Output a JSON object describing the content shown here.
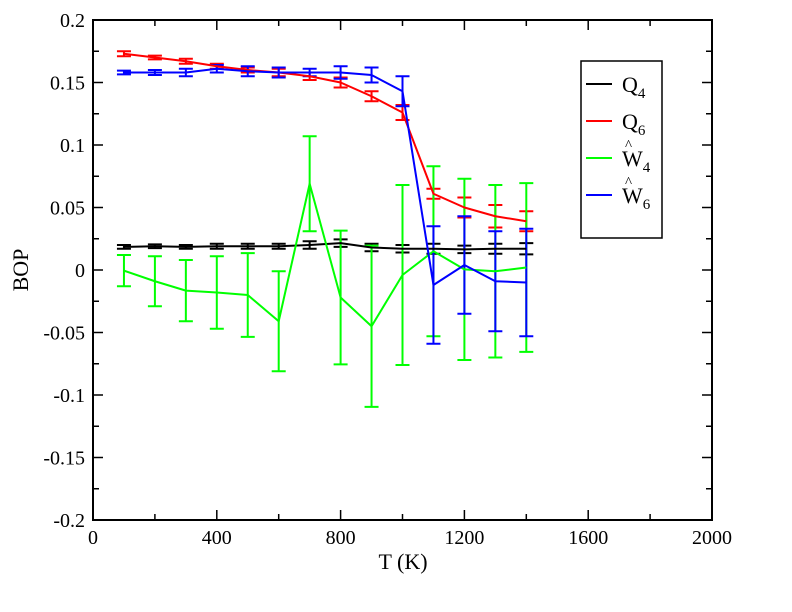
{
  "chart_data": {
    "type": "line",
    "xlabel": "T (K)",
    "ylabel": "BOP",
    "xlim": [
      0,
      2000
    ],
    "ylim": [
      -0.2,
      0.2
    ],
    "xticks": [
      "0",
      "400",
      "800",
      "1200",
      "1600",
      "2000"
    ],
    "yticks": [
      "-0.2",
      "-0.15",
      "-0.1",
      "-0.05",
      "0",
      "0.05",
      "0.1",
      "0.15",
      "0.2"
    ],
    "grid": false,
    "legend_position": "top-right",
    "x": [
      100,
      200,
      300,
      400,
      500,
      600,
      700,
      800,
      900,
      1000,
      1100,
      1200,
      1300,
      1400
    ],
    "series": [
      {
        "name": "Q4",
        "legend_main": "Q",
        "legend_sub": "4",
        "hat": false,
        "color": "#000000",
        "values": [
          0.0185,
          0.019,
          0.0185,
          0.019,
          0.019,
          0.019,
          0.02,
          0.0215,
          0.018,
          0.017,
          0.017,
          0.0165,
          0.017,
          0.017
        ],
        "errors": [
          0.0015,
          0.0015,
          0.0015,
          0.002,
          0.002,
          0.002,
          0.003,
          0.003,
          0.003,
          0.003,
          0.004,
          0.003,
          0.004,
          0.0045
        ]
      },
      {
        "name": "Q6",
        "legend_main": "Q",
        "legend_sub": "6",
        "hat": false,
        "color": "#ff0000",
        "values": [
          0.173,
          0.17,
          0.167,
          0.163,
          0.16,
          0.158,
          0.155,
          0.15,
          0.139,
          0.126,
          0.061,
          0.05,
          0.043,
          0.039
        ],
        "errors": [
          0.002,
          0.0015,
          0.002,
          0.002,
          0.002,
          0.003,
          0.003,
          0.004,
          0.004,
          0.006,
          0.004,
          0.008,
          0.009,
          0.008
        ]
      },
      {
        "name": "W4",
        "legend_main": "W",
        "legend_sub": "4",
        "hat": true,
        "color": "#00ff00",
        "values": [
          -0.0005,
          -0.009,
          -0.0165,
          -0.018,
          -0.02,
          -0.041,
          0.069,
          -0.022,
          -0.045,
          -0.004,
          0.015,
          0.0005,
          -0.001,
          0.002
        ],
        "errors": [
          0.0125,
          0.02,
          0.0245,
          0.029,
          0.0335,
          0.04,
          0.038,
          0.0535,
          0.0645,
          0.072,
          0.068,
          0.0725,
          0.069,
          0.0675
        ]
      },
      {
        "name": "W6",
        "legend_main": "W",
        "legend_sub": "6",
        "hat": true,
        "color": "#0000ff",
        "values": [
          0.158,
          0.158,
          0.158,
          0.161,
          0.159,
          0.158,
          0.158,
          0.158,
          0.156,
          0.143,
          -0.012,
          0.004,
          -0.009,
          -0.01
        ],
        "errors": [
          0.0015,
          0.002,
          0.003,
          0.003,
          0.004,
          0.004,
          0.003,
          0.005,
          0.006,
          0.012,
          0.047,
          0.039,
          0.04,
          0.043
        ]
      }
    ]
  }
}
